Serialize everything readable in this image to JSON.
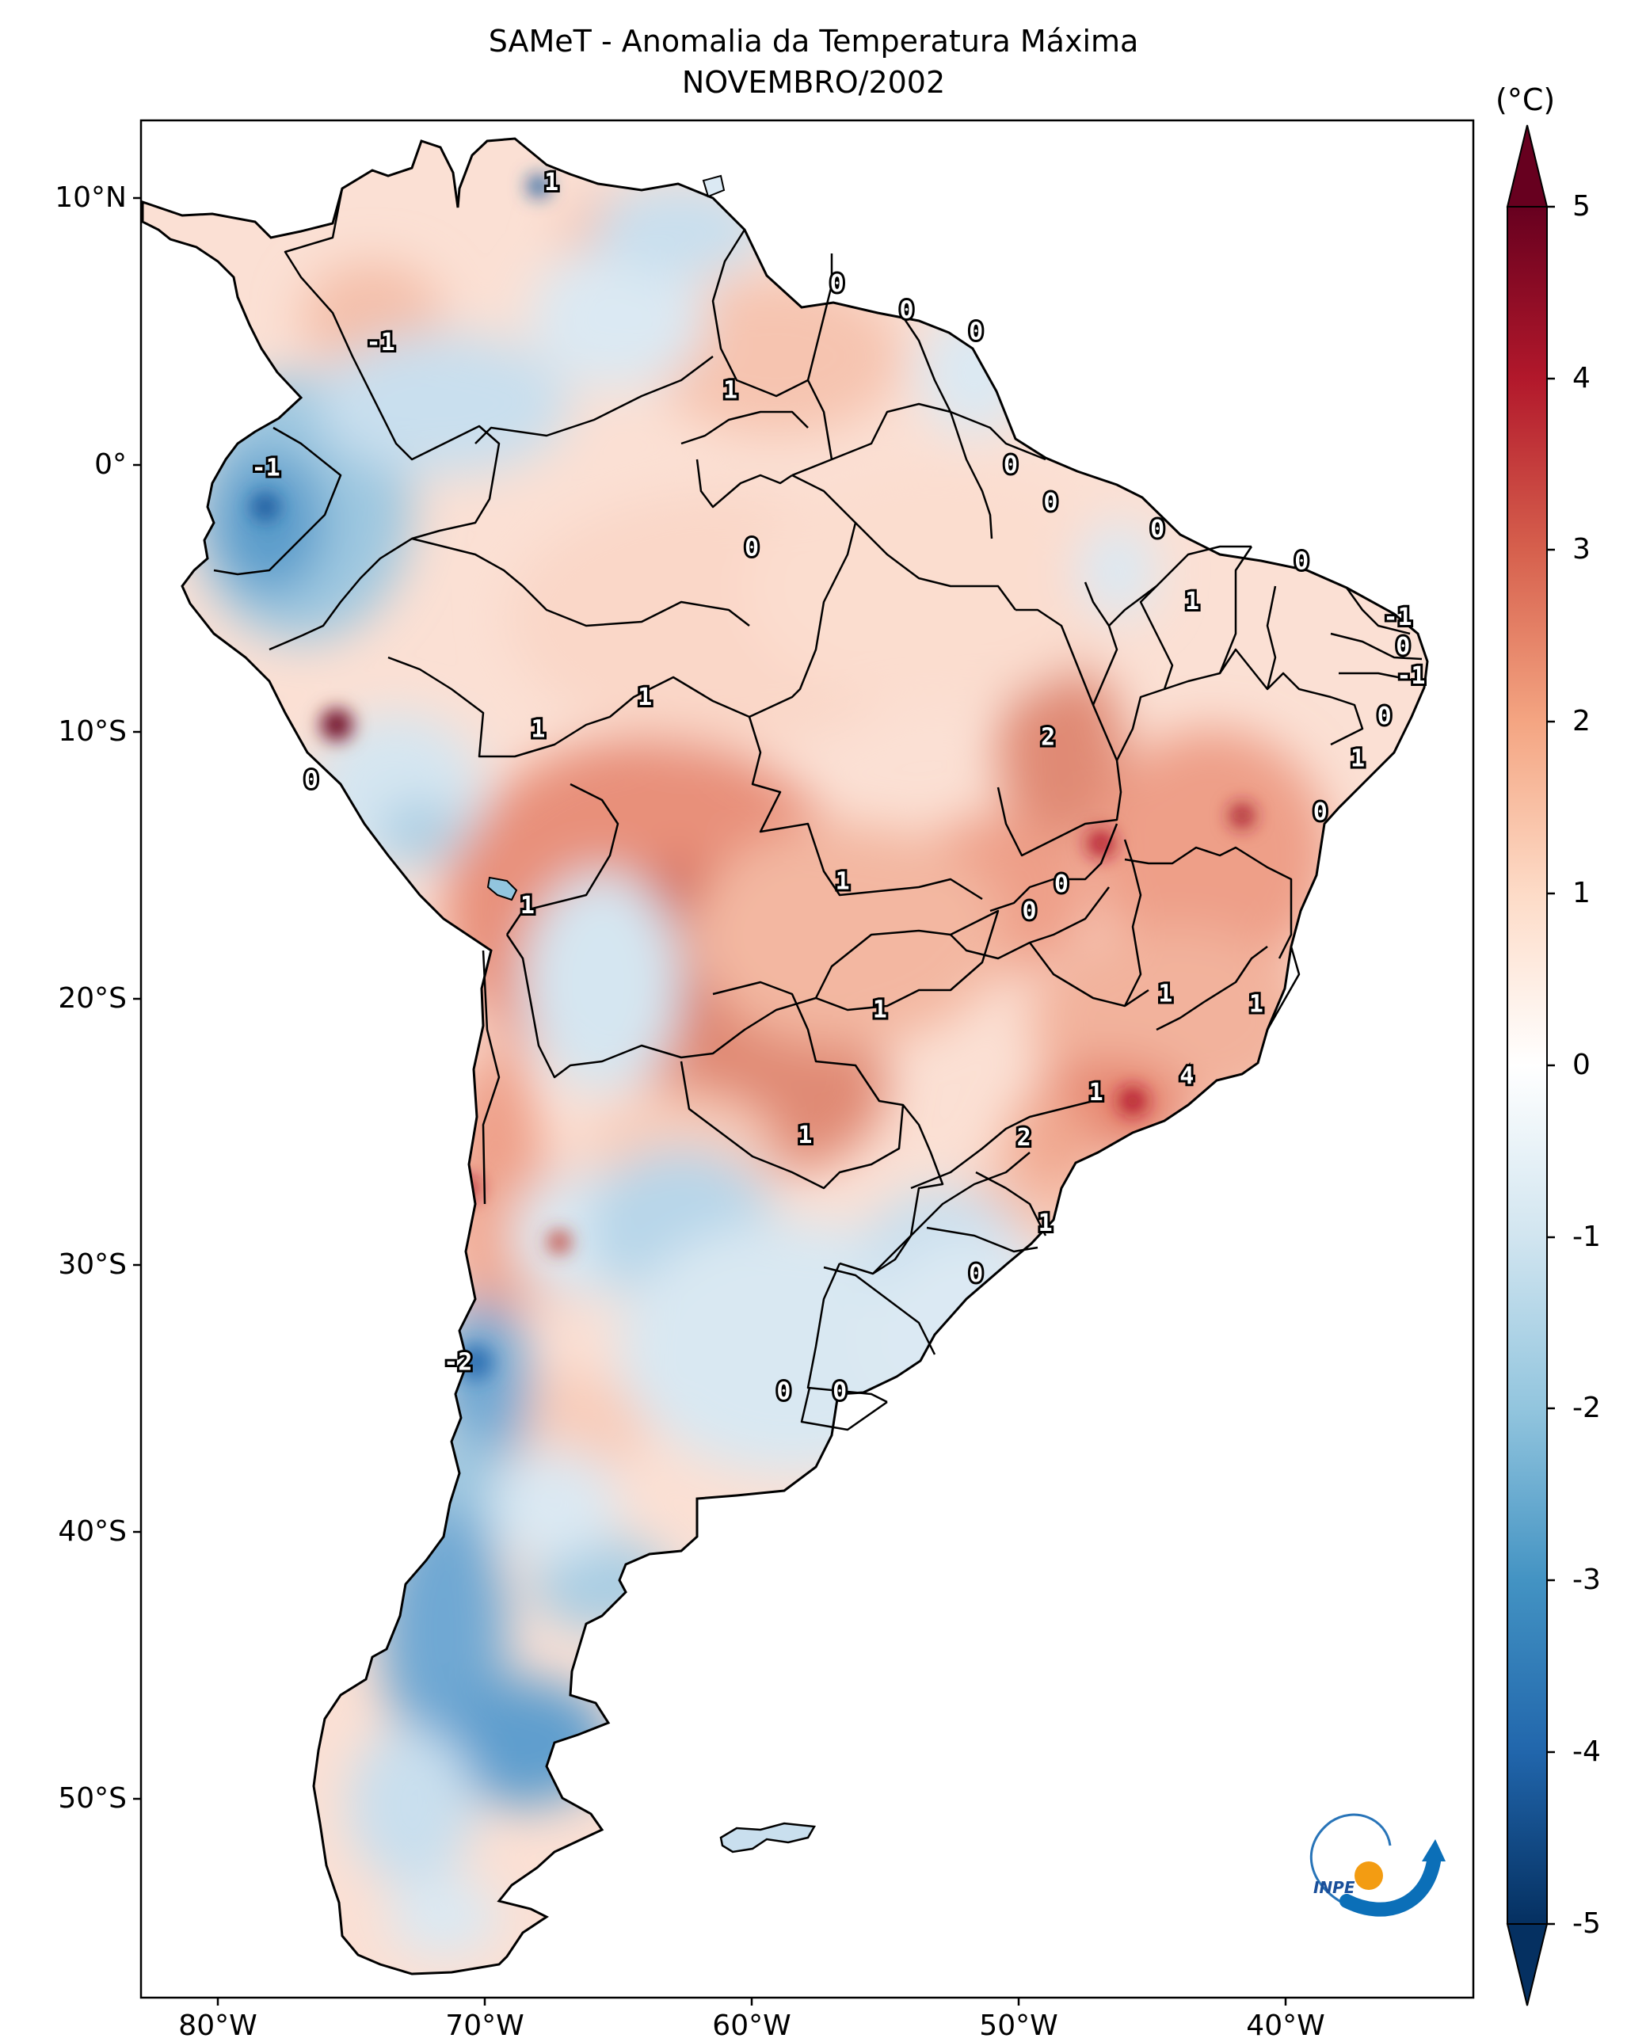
{
  "title": {
    "line1": "SAMeT - Anomalia da Temperatura Máxima",
    "line2": "NOVEMBRO/2002"
  },
  "colorbar": {
    "unit": "(°C)",
    "ticks": [
      "5",
      "4",
      "3",
      "2",
      "1",
      "0",
      "-1",
      "-2",
      "-3",
      "-4",
      "-5"
    ],
    "colors": [
      "#67001f",
      "#b2182b",
      "#d6604d",
      "#f4a582",
      "#fddbc7",
      "#ffffff",
      "#d1e5f0",
      "#92c5de",
      "#4393c3",
      "#2166ac",
      "#053061"
    ]
  },
  "axes": {
    "lat_labels": [
      "10°N",
      "0°",
      "10°S",
      "20°S",
      "30°S",
      "40°S",
      "50°S"
    ],
    "lon_labels": [
      "80°W",
      "70°W",
      "60°W",
      "50°W",
      "40°W"
    ]
  },
  "contour_labels": [
    {
      "text": "1",
      "lon": -67.5,
      "lat": 10.6
    },
    {
      "text": "0",
      "lon": -56.8,
      "lat": 6.8
    },
    {
      "text": "0",
      "lon": -54.2,
      "lat": 5.8
    },
    {
      "text": "0",
      "lon": -51.6,
      "lat": 5.0
    },
    {
      "text": "-1",
      "lon": -73.9,
      "lat": 4.6
    },
    {
      "text": "1",
      "lon": -60.8,
      "lat": 2.8
    },
    {
      "text": "-1",
      "lon": -78.2,
      "lat": -0.1
    },
    {
      "text": "0",
      "lon": -50.3,
      "lat": 0.0
    },
    {
      "text": "0",
      "lon": -48.8,
      "lat": -1.4
    },
    {
      "text": "0",
      "lon": -60.0,
      "lat": -3.1
    },
    {
      "text": "0",
      "lon": -44.8,
      "lat": -2.4
    },
    {
      "text": "0",
      "lon": -39.4,
      "lat": -3.6
    },
    {
      "text": "1",
      "lon": -43.5,
      "lat": -5.1
    },
    {
      "text": "-1",
      "lon": -35.8,
      "lat": -5.7
    },
    {
      "text": "0",
      "lon": -35.6,
      "lat": -6.8
    },
    {
      "text": "-1",
      "lon": -35.3,
      "lat": -7.9
    },
    {
      "text": "1",
      "lon": -64.0,
      "lat": -8.7
    },
    {
      "text": "1",
      "lon": -68.0,
      "lat": -9.9
    },
    {
      "text": "2",
      "lon": -48.9,
      "lat": -10.2
    },
    {
      "text": "0",
      "lon": -36.3,
      "lat": -9.4
    },
    {
      "text": "1",
      "lon": -37.3,
      "lat": -11.0
    },
    {
      "text": "0",
      "lon": -76.5,
      "lat": -11.8
    },
    {
      "text": "0",
      "lon": -38.7,
      "lat": -13.0
    },
    {
      "text": "1",
      "lon": -56.6,
      "lat": -15.6
    },
    {
      "text": "0",
      "lon": -48.4,
      "lat": -15.7
    },
    {
      "text": "0",
      "lon": -49.6,
      "lat": -16.7
    },
    {
      "text": "1",
      "lon": -68.4,
      "lat": -16.5
    },
    {
      "text": "1",
      "lon": -55.2,
      "lat": -20.4
    },
    {
      "text": "1",
      "lon": -44.5,
      "lat": -19.8
    },
    {
      "text": "1",
      "lon": -41.1,
      "lat": -20.2
    },
    {
      "text": "4",
      "lon": -43.7,
      "lat": -22.9
    },
    {
      "text": "1",
      "lon": -47.1,
      "lat": -23.5
    },
    {
      "text": "2",
      "lon": -49.8,
      "lat": -25.2
    },
    {
      "text": "1",
      "lon": -58.0,
      "lat": -25.1
    },
    {
      "text": "1",
      "lon": -49.0,
      "lat": -28.4
    },
    {
      "text": "0",
      "lon": -51.6,
      "lat": -30.3
    },
    {
      "text": "-2",
      "lon": -71.0,
      "lat": -33.6
    },
    {
      "text": "0",
      "lon": -58.8,
      "lat": -34.7
    },
    {
      "text": "0",
      "lon": -56.7,
      "lat": -34.7
    }
  ],
  "logo": {
    "text": "INPE"
  }
}
